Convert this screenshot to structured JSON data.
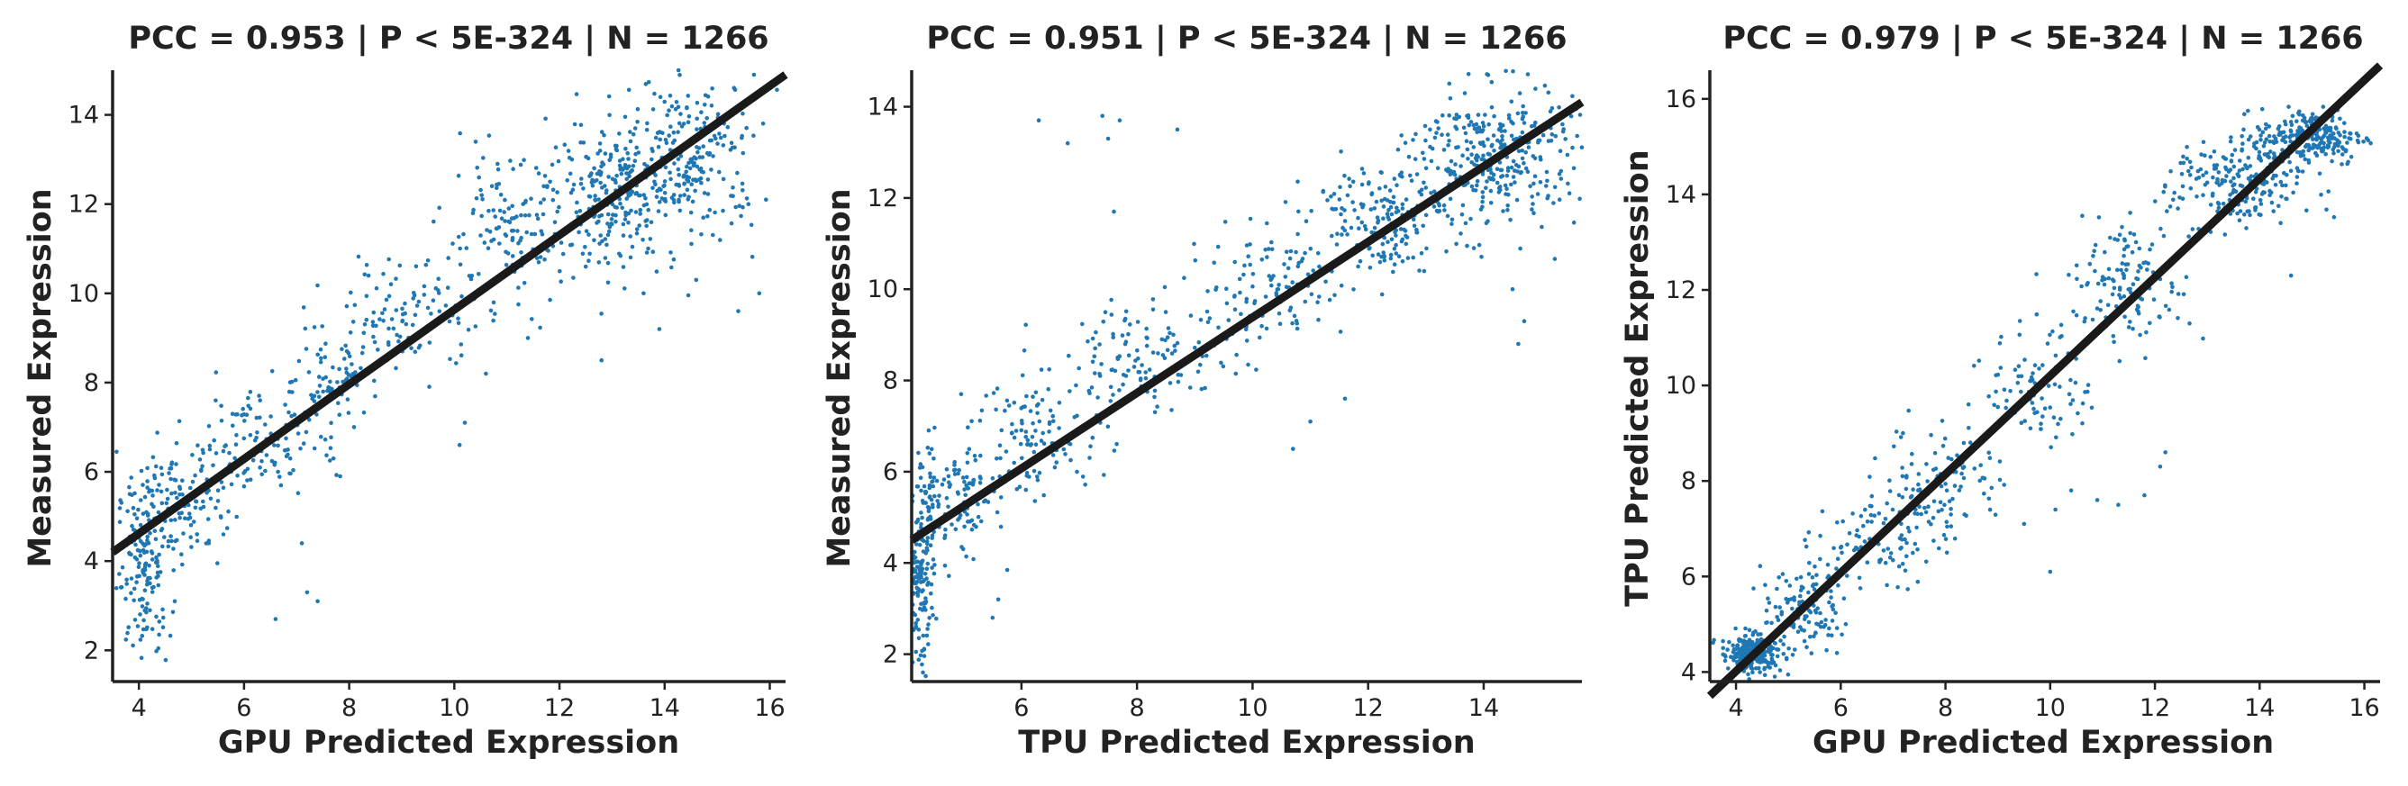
{
  "chart_data": [
    {
      "type": "scatter",
      "title": "PCC =  0.953 | P <  5E-324 | N = 1266",
      "xlabel": "GPU Predicted Expression",
      "ylabel": "Measured Expression",
      "xlim": [
        3.5,
        16.3
      ],
      "ylim": [
        1.3,
        15.0
      ],
      "xticks": [
        "4",
        "6",
        "8",
        "10",
        "12",
        "14",
        "16"
      ],
      "yticks": [
        "2",
        "4",
        "6",
        "8",
        "10",
        "12",
        "14"
      ],
      "fit_line": {
        "x": [
          3.5,
          16.3
        ],
        "y": [
          4.2,
          14.9
        ]
      },
      "color": "#1f77b4",
      "clusters": [
        {
          "cx": 4.1,
          "cy": 3.9,
          "sx": 0.25,
          "sy": 1.0,
          "n": 160
        },
        {
          "cx": 4.8,
          "cy": 5.3,
          "sx": 0.45,
          "sy": 0.7,
          "n": 120
        },
        {
          "cx": 6.2,
          "cy": 6.6,
          "sx": 0.6,
          "sy": 0.6,
          "n": 110
        },
        {
          "cx": 7.6,
          "cy": 8.1,
          "sx": 0.5,
          "sy": 0.7,
          "n": 90
        },
        {
          "cx": 9.2,
          "cy": 9.5,
          "sx": 0.6,
          "sy": 0.6,
          "n": 100
        },
        {
          "cx": 11.0,
          "cy": 11.3,
          "sx": 0.6,
          "sy": 0.8,
          "n": 130
        },
        {
          "cx": 13.0,
          "cy": 12.2,
          "sx": 0.6,
          "sy": 0.8,
          "n": 200
        },
        {
          "cx": 14.4,
          "cy": 13.0,
          "sx": 0.7,
          "sy": 0.9,
          "n": 256
        }
      ],
      "outliers": [
        {
          "x": 7.1,
          "y": 4.4
        },
        {
          "x": 7.2,
          "y": 3.3
        },
        {
          "x": 7.4,
          "y": 3.1
        },
        {
          "x": 6.6,
          "y": 2.7
        },
        {
          "x": 10.1,
          "y": 6.6
        },
        {
          "x": 10.2,
          "y": 7.1
        },
        {
          "x": 10.6,
          "y": 8.2
        },
        {
          "x": 11.4,
          "y": 9.0
        },
        {
          "x": 12.8,
          "y": 8.5
        },
        {
          "x": 13.9,
          "y": 9.2
        },
        {
          "x": 15.4,
          "y": 9.6
        },
        {
          "x": 15.8,
          "y": 10.0
        },
        {
          "x": 14.6,
          "y": 10.3
        },
        {
          "x": 13.6,
          "y": 10.0
        },
        {
          "x": 12.5,
          "y": 10.6
        }
      ]
    },
    {
      "type": "scatter",
      "title": "PCC =  0.951 | P <  5E-324 | N = 1266",
      "xlabel": "TPU Predicted Expression",
      "ylabel": "Measured Expression",
      "xlim": [
        4.1,
        15.7
      ],
      "ylim": [
        1.4,
        14.8
      ],
      "xticks": [
        "6",
        "8",
        "10",
        "12",
        "14"
      ],
      "yticks": [
        "2",
        "4",
        "6",
        "8",
        "10",
        "12",
        "14"
      ],
      "fit_line": {
        "x": [
          4.1,
          15.7
        ],
        "y": [
          4.5,
          14.1
        ]
      },
      "color": "#1f77b4",
      "clusters": [
        {
          "cx": 4.25,
          "cy": 3.6,
          "sx": 0.12,
          "sy": 1.0,
          "n": 160
        },
        {
          "cx": 4.8,
          "cy": 5.3,
          "sx": 0.4,
          "sy": 0.7,
          "n": 130
        },
        {
          "cx": 6.3,
          "cy": 6.8,
          "sx": 0.6,
          "sy": 0.6,
          "n": 110
        },
        {
          "cx": 8.2,
          "cy": 8.5,
          "sx": 0.7,
          "sy": 0.6,
          "n": 120
        },
        {
          "cx": 10.3,
          "cy": 10.0,
          "sx": 0.7,
          "sy": 0.6,
          "n": 110
        },
        {
          "cx": 12.2,
          "cy": 11.6,
          "sx": 0.6,
          "sy": 0.6,
          "n": 180
        },
        {
          "cx": 14.2,
          "cy": 12.9,
          "sx": 0.7,
          "sy": 0.8,
          "n": 330
        }
      ],
      "outliers": [
        {
          "x": 6.3,
          "y": 13.7
        },
        {
          "x": 6.8,
          "y": 13.2
        },
        {
          "x": 7.4,
          "y": 13.8
        },
        {
          "x": 7.5,
          "y": 13.3
        },
        {
          "x": 7.6,
          "y": 11.7
        },
        {
          "x": 7.7,
          "y": 13.7
        },
        {
          "x": 8.7,
          "y": 13.5
        },
        {
          "x": 5.6,
          "y": 3.2
        },
        {
          "x": 5.5,
          "y": 2.8
        },
        {
          "x": 10.7,
          "y": 6.5
        },
        {
          "x": 11.0,
          "y": 7.1
        },
        {
          "x": 11.6,
          "y": 7.6
        },
        {
          "x": 14.6,
          "y": 8.8
        },
        {
          "x": 14.7,
          "y": 9.3
        },
        {
          "x": 14.5,
          "y": 10.0
        }
      ]
    },
    {
      "type": "scatter",
      "title": "PCC =  0.979 | P <  5E-324 | N = 1266",
      "xlabel": "GPU Predicted Expression",
      "ylabel": "TPU Predicted Expression",
      "xlim": [
        3.5,
        16.3
      ],
      "ylim": [
        3.8,
        16.6
      ],
      "xticks": [
        "4",
        "6",
        "8",
        "10",
        "12",
        "14",
        "16"
      ],
      "yticks": [
        "4",
        "6",
        "8",
        "10",
        "12",
        "14",
        "16"
      ],
      "fit_line": {
        "x": [
          3.5,
          16.3
        ],
        "y": [
          3.5,
          16.7
        ]
      },
      "color": "#1f77b4",
      "clusters": [
        {
          "cx": 4.3,
          "cy": 4.4,
          "sx": 0.3,
          "sy": 0.2,
          "n": 250
        },
        {
          "cx": 5.3,
          "cy": 5.3,
          "sx": 0.4,
          "sy": 0.4,
          "n": 110
        },
        {
          "cx": 6.7,
          "cy": 6.8,
          "sx": 0.6,
          "sy": 0.5,
          "n": 100
        },
        {
          "cx": 8.0,
          "cy": 8.1,
          "sx": 0.6,
          "sy": 0.6,
          "n": 100
        },
        {
          "cx": 9.8,
          "cy": 10.0,
          "sx": 0.5,
          "sy": 0.6,
          "n": 90
        },
        {
          "cx": 11.5,
          "cy": 12.2,
          "sx": 0.6,
          "sy": 0.7,
          "n": 130
        },
        {
          "cx": 13.6,
          "cy": 14.2,
          "sx": 0.6,
          "sy": 0.5,
          "n": 220
        },
        {
          "cx": 15.0,
          "cy": 15.2,
          "sx": 0.5,
          "sy": 0.3,
          "n": 226
        }
      ],
      "outliers": [
        {
          "x": 10.1,
          "y": 7.4
        },
        {
          "x": 10.4,
          "y": 7.8
        },
        {
          "x": 10.9,
          "y": 7.6
        },
        {
          "x": 11.3,
          "y": 7.5
        },
        {
          "x": 11.8,
          "y": 7.7
        },
        {
          "x": 12.2,
          "y": 8.6
        },
        {
          "x": 12.1,
          "y": 8.3
        },
        {
          "x": 10.0,
          "y": 6.1
        },
        {
          "x": 9.5,
          "y": 7.1
        },
        {
          "x": 14.6,
          "y": 12.3
        },
        {
          "x": 14.4,
          "y": 13.4
        }
      ]
    }
  ]
}
